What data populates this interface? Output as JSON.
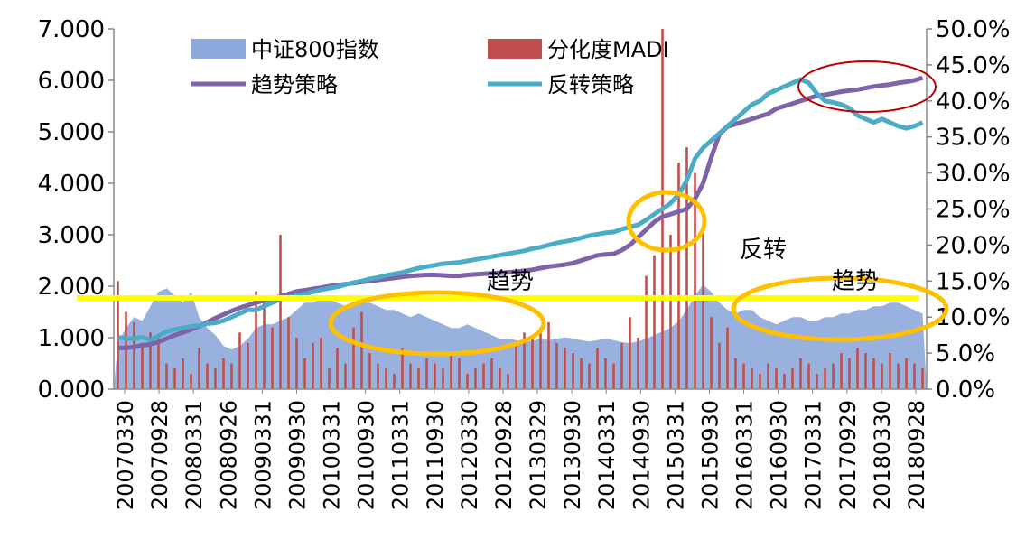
{
  "chart_data": {
    "type": "combo",
    "x_tick_labels": [
      "20070330",
      "20070928",
      "20080331",
      "20080926",
      "20090331",
      "20090930",
      "20100331",
      "20100930",
      "20110331",
      "20110930",
      "20120330",
      "20120928",
      "20130329",
      "20130930",
      "20140331",
      "20140930",
      "20150331",
      "20150930",
      "20160331",
      "20160930",
      "20170331",
      "20170929",
      "20180330",
      "20180928"
    ],
    "left_axis": {
      "ticks": [
        "0.000",
        "1.000",
        "2.000",
        "3.000",
        "4.000",
        "5.000",
        "6.000",
        "7.000"
      ],
      "ylim": [
        0,
        7
      ]
    },
    "right_axis": {
      "ticks": [
        "0.0%",
        "5.0%",
        "10.0%",
        "15.0%",
        "20.0%",
        "25.0%",
        "30.0%",
        "35.0%",
        "40.0%",
        "45.0%",
        "50.0%"
      ],
      "ylim": [
        0,
        0.5
      ]
    },
    "series": [
      {
        "name": "中证800指数",
        "kind": "area",
        "axis": "right",
        "color": "#8EA9DB",
        "values": [
          0.065,
          0.085,
          0.1,
          0.095,
          0.115,
          0.135,
          0.14,
          0.13,
          0.12,
          0.135,
          0.1,
          0.085,
          0.075,
          0.06,
          0.055,
          0.06,
          0.07,
          0.085,
          0.09,
          0.09,
          0.095,
          0.1,
          0.11,
          0.12,
          0.12,
          0.125,
          0.125,
          0.12,
          0.115,
          0.115,
          0.12,
          0.12,
          0.115,
          0.11,
          0.11,
          0.105,
          0.1,
          0.105,
          0.1,
          0.095,
          0.09,
          0.085,
          0.085,
          0.09,
          0.085,
          0.08,
          0.075,
          0.07,
          0.07,
          0.068,
          0.065,
          0.067,
          0.07,
          0.068,
          0.07,
          0.072,
          0.07,
          0.068,
          0.066,
          0.068,
          0.07,
          0.068,
          0.065,
          0.064,
          0.066,
          0.07,
          0.075,
          0.08,
          0.085,
          0.095,
          0.11,
          0.13,
          0.145,
          0.135,
          0.12,
          0.11,
          0.105,
          0.11,
          0.11,
          0.1,
          0.095,
          0.09,
          0.095,
          0.1,
          0.1,
          0.095,
          0.095,
          0.1,
          0.1,
          0.105,
          0.105,
          0.11,
          0.11,
          0.115,
          0.115,
          0.12,
          0.12,
          0.115,
          0.11,
          0.105
        ]
      },
      {
        "name": "分化度MADI",
        "kind": "bar",
        "axis": "left",
        "color": "#C0504D",
        "values": [
          2.1,
          1.5,
          1.3,
          0.9,
          1.1,
          1.0,
          0.5,
          0.4,
          0.6,
          0.3,
          0.8,
          0.5,
          0.4,
          0.6,
          0.5,
          1.1,
          0.9,
          1.9,
          1.8,
          1.2,
          3.0,
          1.4,
          1.0,
          0.6,
          0.9,
          1.0,
          0.4,
          0.8,
          0.5,
          1.2,
          1.5,
          0.7,
          0.5,
          0.4,
          0.3,
          0.8,
          0.5,
          0.4,
          0.6,
          0.5,
          0.4,
          0.7,
          0.6,
          0.3,
          0.4,
          0.5,
          0.6,
          0.4,
          0.3,
          0.9,
          1.1,
          1.0,
          1.2,
          1.3,
          0.9,
          0.8,
          0.7,
          0.6,
          0.5,
          0.8,
          0.6,
          0.5,
          0.9,
          1.4,
          1.0,
          2.2,
          2.6,
          7.0,
          3.0,
          4.4,
          4.7,
          4.2,
          3.1,
          1.4,
          0.9,
          1.2,
          0.6,
          0.5,
          0.4,
          0.3,
          0.5,
          0.4,
          0.3,
          0.4,
          0.6,
          0.5,
          0.3,
          0.4,
          0.5,
          0.7,
          0.6,
          0.8,
          0.7,
          0.6,
          0.5,
          0.7,
          0.5,
          0.6,
          0.5,
          0.4
        ]
      },
      {
        "name": "趋势策略",
        "kind": "line",
        "axis": "left",
        "color": "#7F63A8",
        "values": [
          0.8,
          0.8,
          0.82,
          0.85,
          0.87,
          0.92,
          0.98,
          1.05,
          1.1,
          1.16,
          1.22,
          1.3,
          1.38,
          1.45,
          1.52,
          1.58,
          1.63,
          1.68,
          1.72,
          1.76,
          1.8,
          1.85,
          1.9,
          1.92,
          1.95,
          1.97,
          2.0,
          2.02,
          2.04,
          2.06,
          2.08,
          2.1,
          2.12,
          2.14,
          2.16,
          2.18,
          2.2,
          2.21,
          2.22,
          2.22,
          2.21,
          2.2,
          2.2,
          2.22,
          2.23,
          2.24,
          2.25,
          2.26,
          2.27,
          2.28,
          2.3,
          2.32,
          2.35,
          2.38,
          2.4,
          2.42,
          2.45,
          2.5,
          2.55,
          2.6,
          2.62,
          2.63,
          2.7,
          2.8,
          2.95,
          3.1,
          3.25,
          3.35,
          3.4,
          3.45,
          3.5,
          3.7,
          4.0,
          4.5,
          4.95,
          5.1,
          5.15,
          5.2,
          5.25,
          5.3,
          5.35,
          5.45,
          5.5,
          5.55,
          5.6,
          5.65,
          5.7,
          5.72,
          5.75,
          5.78,
          5.8,
          5.82,
          5.85,
          5.88,
          5.9,
          5.92,
          5.95,
          5.97,
          6.0,
          6.05
        ]
      },
      {
        "name": "反转策略",
        "kind": "line",
        "axis": "right",
        "color": "#4BACC6",
        "values": [
          0.072,
          0.07,
          0.07,
          0.072,
          0.068,
          0.074,
          0.08,
          0.083,
          0.085,
          0.087,
          0.088,
          0.091,
          0.092,
          0.095,
          0.1,
          0.105,
          0.11,
          0.11,
          0.115,
          0.12,
          0.125,
          0.127,
          0.13,
          0.132,
          0.135,
          0.138,
          0.14,
          0.142,
          0.145,
          0.148,
          0.15,
          0.153,
          0.155,
          0.158,
          0.16,
          0.162,
          0.165,
          0.168,
          0.17,
          0.172,
          0.174,
          0.175,
          0.176,
          0.178,
          0.18,
          0.182,
          0.184,
          0.186,
          0.188,
          0.19,
          0.192,
          0.195,
          0.197,
          0.2,
          0.203,
          0.205,
          0.207,
          0.21,
          0.213,
          0.215,
          0.217,
          0.218,
          0.222,
          0.225,
          0.228,
          0.235,
          0.243,
          0.25,
          0.258,
          0.27,
          0.29,
          0.32,
          0.335,
          0.345,
          0.355,
          0.365,
          0.375,
          0.385,
          0.395,
          0.4,
          0.41,
          0.415,
          0.42,
          0.425,
          0.43,
          0.425,
          0.41,
          0.4,
          0.398,
          0.395,
          0.39,
          0.38,
          0.375,
          0.37,
          0.375,
          0.37,
          0.365,
          0.362,
          0.365,
          0.37
        ]
      }
    ],
    "annotations": [
      {
        "text": "趋势",
        "near": "20120330"
      },
      {
        "text": "反转",
        "near": "20170331"
      },
      {
        "text": "趋势",
        "near": "20180330"
      }
    ]
  }
}
